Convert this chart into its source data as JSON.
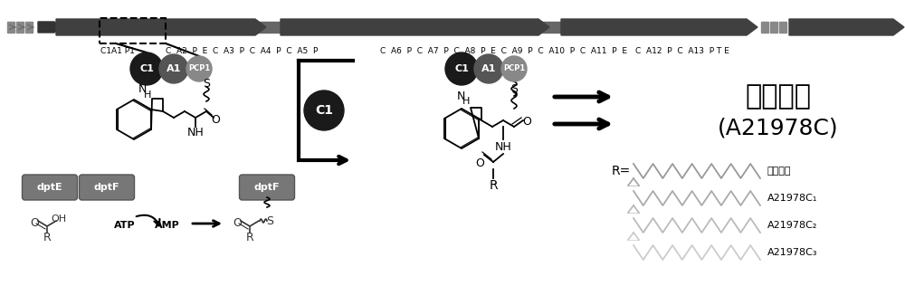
{
  "bg_color": "#ffffff",
  "chinese_title": "达托霏素",
  "chinese_title2": "(A21978C)",
  "chain_labels": [
    "达托霏素",
    "A21978C₁",
    "A21978C₂",
    "A21978C₃"
  ],
  "gene_label": "C1A1 P1|C  A2  P  E  C  A3  P  C  A4  P  C  A5  P     C  A6  P  C  A7  P  C  A8  P  E  C  A9  P  C  A10  P  C  A11  P  E     C  A12  P  C  A13  P  T  E"
}
